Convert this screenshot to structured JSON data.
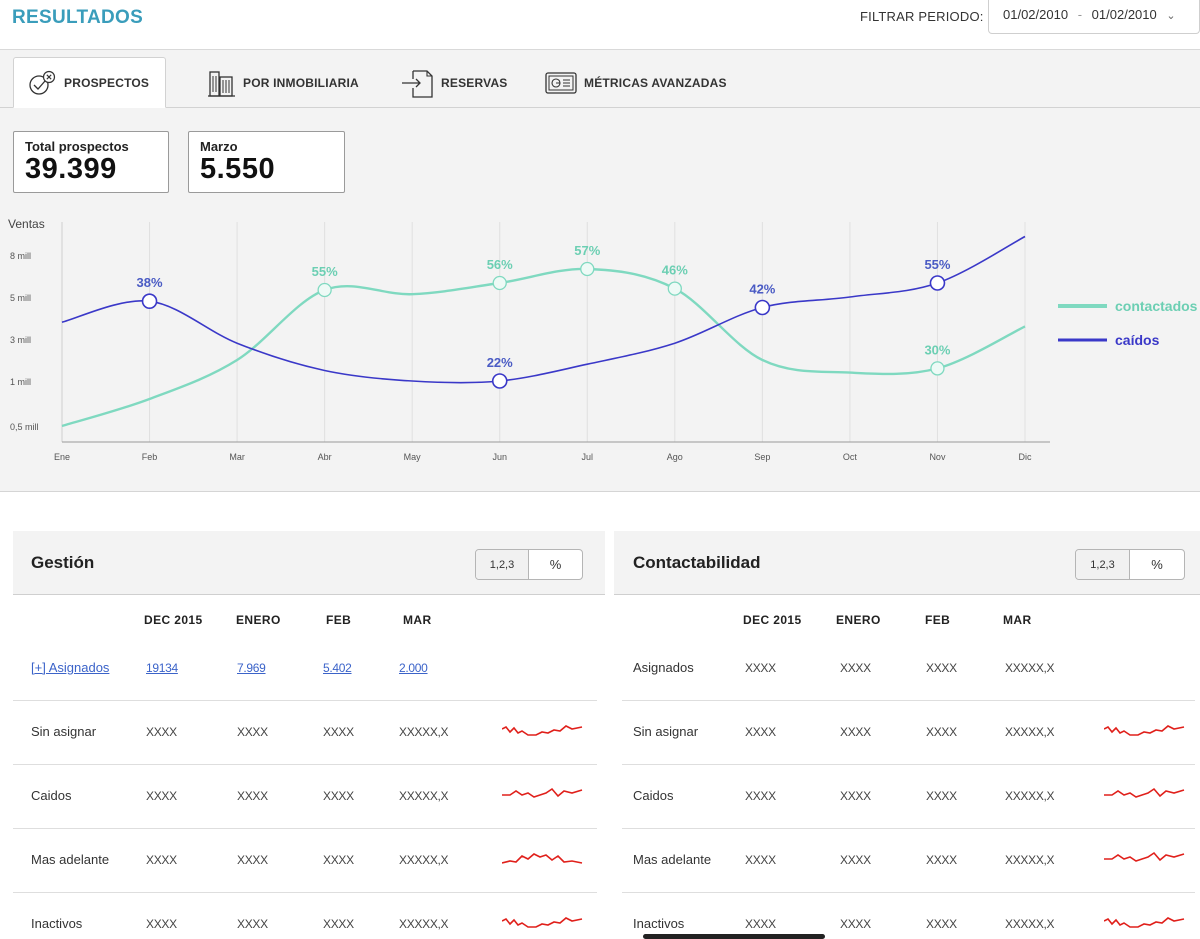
{
  "header": {
    "title": "RESULTADOS",
    "filter_label": "FILTRAR PERIODO:",
    "date_from": "01/02/2010",
    "date_sep": "-",
    "date_to": "01/02/2010"
  },
  "tabs": [
    {
      "label": "PROSPECTOS",
      "icon": "prospect-icon",
      "active": true
    },
    {
      "label": "POR INMOBILIARIA",
      "icon": "building-icon",
      "active": false
    },
    {
      "label": "RESERVAS",
      "icon": "enter-icon",
      "active": false
    },
    {
      "label": "MÉTRICAS AVANZADAS",
      "icon": "dashboard-icon",
      "active": false
    }
  ],
  "kpis": {
    "total": {
      "label": "Total prospectos",
      "value": "39.399"
    },
    "month": {
      "label": "Marzo",
      "value": "5.550"
    }
  },
  "chart_data": {
    "type": "line",
    "ylabel": "Ventas",
    "y_ticks": [
      "8 mill",
      "5 mill",
      "3 mill",
      "1 mill",
      "0,5 mill"
    ],
    "categories": [
      "Ene",
      "Feb",
      "Mar",
      "Abr",
      "May",
      "Jun",
      "Jul",
      "Ago",
      "Sep",
      "Oct",
      "Nov",
      "Dic"
    ],
    "series": [
      {
        "name": "contactados",
        "color": "#7fd9c0",
        "values": [
          0.5,
          0.8,
          2.0,
          5.5,
          5.2,
          6.0,
          7.0,
          5.6,
          2.0,
          1.4,
          1.6,
          3.6
        ],
        "markers": [
          {
            "index": 3,
            "label": "55%"
          },
          {
            "index": 5,
            "label": "56%"
          },
          {
            "index": 6,
            "label": "57%"
          },
          {
            "index": 7,
            "label": "46%"
          },
          {
            "index": 10,
            "label": "30%"
          }
        ]
      },
      {
        "name": "caídos",
        "color": "#3a38c8",
        "values": [
          3.8,
          4.8,
          2.8,
          1.5,
          1.0,
          1.0,
          1.8,
          2.8,
          4.5,
          5.0,
          6.0,
          10.0
        ],
        "markers": [
          {
            "index": 1,
            "label": "38%"
          },
          {
            "index": 5,
            "label": "22%"
          },
          {
            "index": 8,
            "label": "42%"
          },
          {
            "index": 10,
            "label": "55%"
          }
        ]
      }
    ],
    "legend": "right",
    "grid": true
  },
  "gestion": {
    "title": "Gestión",
    "toggle_num": "1,2,3",
    "toggle_pct": "%",
    "columns": [
      "DEC 2015",
      "ENERO",
      "FEB",
      "MAR"
    ],
    "rows": [
      {
        "label": "[+] Asignados",
        "values": [
          "19134",
          "7.969",
          "5.402",
          "2.000"
        ],
        "link": true,
        "spark": null
      },
      {
        "label": "Sin asignar",
        "values": [
          "XXXX",
          "XXXX",
          "XXXX",
          "XXXXX,X"
        ],
        "spark": "a"
      },
      {
        "label": "Caidos",
        "values": [
          "XXXX",
          "XXXX",
          "XXXX",
          "XXXXX,X"
        ],
        "spark": "b"
      },
      {
        "label": "Mas adelante",
        "values": [
          "XXXX",
          "XXXX",
          "XXXX",
          "XXXXX,X"
        ],
        "spark": "c"
      },
      {
        "label": "Inactivos",
        "values": [
          "XXXX",
          "XXXX",
          "XXXX",
          "XXXXX,X"
        ],
        "spark": "a"
      }
    ]
  },
  "contactabilidad": {
    "title": "Contactabilidad",
    "toggle_num": "1,2,3",
    "toggle_pct": "%",
    "columns": [
      "DEC 2015",
      "ENERO",
      "FEB",
      "MAR"
    ],
    "rows": [
      {
        "label": "Asignados",
        "values": [
          "XXXX",
          "XXXX",
          "XXXX",
          "XXXXX,X"
        ],
        "spark": null
      },
      {
        "label": "Sin asignar",
        "values": [
          "XXXX",
          "XXXX",
          "XXXX",
          "XXXXX,X"
        ],
        "spark": "a"
      },
      {
        "label": "Caidos",
        "values": [
          "XXXX",
          "XXXX",
          "XXXX",
          "XXXXX,X"
        ],
        "spark": "b"
      },
      {
        "label": "Mas adelante",
        "values": [
          "XXXX",
          "XXXX",
          "XXXX",
          "XXXXX,X"
        ],
        "spark": "b"
      },
      {
        "label": "Inactivos",
        "values": [
          "XXXX",
          "XXXX",
          "XXXX",
          "XXXXX,X"
        ],
        "spark": "a"
      }
    ]
  },
  "colors": {
    "accent": "#3a9dbb",
    "contactados": "#7fd9c0",
    "caidos": "#3a38c8",
    "sparkline": "#e0201b",
    "link": "#3b63c9"
  }
}
